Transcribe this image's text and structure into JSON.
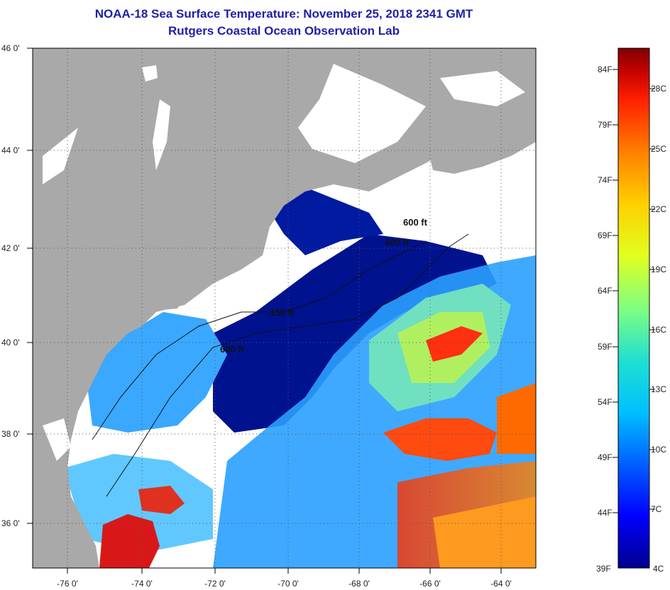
{
  "header": {
    "title": "NOAA-18 Sea Surface Temperature:  November 25, 2018 2341 GMT",
    "subtitle": "Rutgers Coastal Ocean Observation Lab"
  },
  "map": {
    "lat_labels": [
      "46 0'",
      "44 0'",
      "42 0'",
      "40 0'",
      "38 0'",
      "36 0'"
    ],
    "lon_labels": [
      "-76 0'",
      "-74 0'",
      "-72 0'",
      "-70 0'",
      "-68 0'",
      "-66 0'",
      "-64 0'"
    ],
    "contour_labels": [
      "600 ft",
      "600 ft",
      "150 ft",
      "600 ft"
    ],
    "colors": {
      "land": "#a9a9a9",
      "cloud": "#ffffff",
      "cold": "#00108c",
      "warm": "#d40000"
    }
  },
  "colorbar": {
    "fahrenheit_labels": [
      "84F",
      "79F",
      "74F",
      "69F",
      "64F",
      "59F",
      "54F",
      "49F",
      "44F",
      "39F"
    ],
    "celsius_labels": [
      "28C",
      "25C",
      "22C",
      "19C",
      "16C",
      "13C",
      "10C",
      "7C",
      "4C"
    ],
    "gradient": [
      "#00008c",
      "#0000ff",
      "#0060ff",
      "#00c0ff",
      "#20e0d0",
      "#80ff80",
      "#e0ff20",
      "#ffd000",
      "#ff8000",
      "#ff2000",
      "#c00000",
      "#800000"
    ]
  }
}
